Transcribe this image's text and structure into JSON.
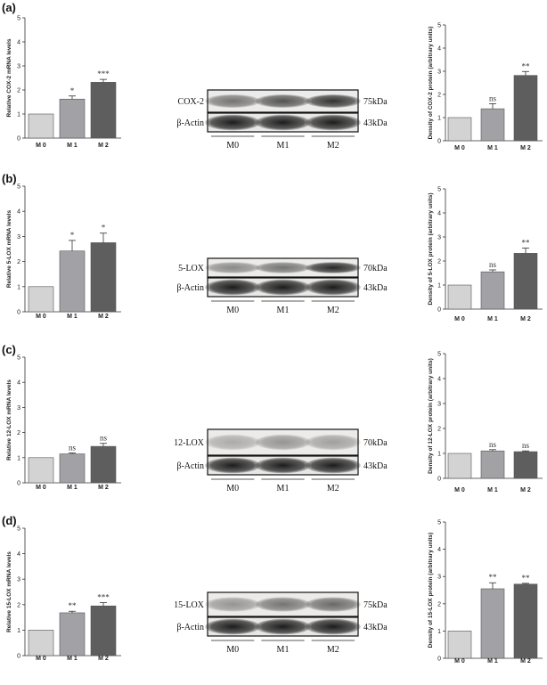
{
  "panels": [
    {
      "label": "(a)",
      "mrna": {
        "ylabel": "Relative COX-2 mRNA levels",
        "categories": [
          "M 0",
          "M 1",
          "M 2"
        ],
        "values": [
          1.0,
          1.62,
          2.32
        ],
        "errors": [
          0,
          0.13,
          0.12
        ],
        "sig": [
          "",
          "*",
          "***"
        ],
        "ylim": [
          0,
          5
        ]
      },
      "blot": {
        "target": "COX-2",
        "target_kda": "75kDa",
        "actin": "β-Actin",
        "actin_kda": "43kDa",
        "groups": [
          "M0",
          "M1",
          "M2"
        ]
      },
      "protein": {
        "ylabel": "Density of COX-2 protein (arbitrary units)",
        "categories": [
          "M 0",
          "M 1",
          "M 2"
        ],
        "values": [
          1.0,
          1.38,
          2.82
        ],
        "errors": [
          0,
          0.22,
          0.17
        ],
        "sig": [
          "",
          "ns",
          "**"
        ],
        "ylim": [
          0,
          5
        ]
      }
    },
    {
      "label": "(b)",
      "mrna": {
        "ylabel": "Relative 5-LOX mRNA levels",
        "categories": [
          "M 0",
          "M 1",
          "M 2"
        ],
        "values": [
          1.0,
          2.42,
          2.75
        ],
        "errors": [
          0,
          0.42,
          0.38
        ],
        "sig": [
          "",
          "*",
          "*"
        ],
        "ylim": [
          0,
          5
        ]
      },
      "blot": {
        "target": "5-LOX",
        "target_kda": "70kDa",
        "actin": "β-Actin",
        "actin_kda": "43kDa",
        "groups": [
          "M0",
          "M1",
          "M2"
        ]
      },
      "protein": {
        "ylabel": "Density of 5-LOX protein (arbitrary units)",
        "categories": [
          "M 0",
          "M 1",
          "M 2"
        ],
        "values": [
          1.0,
          1.55,
          2.32
        ],
        "errors": [
          0,
          0.08,
          0.22
        ],
        "sig": [
          "",
          "ns",
          "**"
        ],
        "ylim": [
          0,
          5
        ]
      }
    },
    {
      "label": "(c)",
      "mrna": {
        "ylabel": "Relative 12-LOX mRNA levels",
        "categories": [
          "M 0",
          "M 1",
          "M 2"
        ],
        "values": [
          1.0,
          1.15,
          1.45
        ],
        "errors": [
          0,
          0.04,
          0.12
        ],
        "sig": [
          "",
          "ns",
          "ns"
        ],
        "ylim": [
          0,
          5
        ]
      },
      "blot": {
        "target": "12-LOX",
        "target_kda": "70kDa",
        "actin": "β-Actin",
        "actin_kda": "43kDa",
        "groups": [
          "M0",
          "M1",
          "M2"
        ]
      },
      "protein": {
        "ylabel": "Density of 12-LOX protein (arbitrary units)",
        "categories": [
          "M 0",
          "M 1",
          "M 2"
        ],
        "values": [
          1.0,
          1.1,
          1.07
        ],
        "errors": [
          0,
          0.05,
          0.03
        ],
        "sig": [
          "",
          "ns",
          "ns"
        ],
        "ylim": [
          0,
          5
        ]
      }
    },
    {
      "label": "(d)",
      "mrna": {
        "ylabel": "Relative 15-LOX mRNA levels",
        "categories": [
          "M 0",
          "M 1",
          "M 2"
        ],
        "values": [
          1.0,
          1.68,
          1.95
        ],
        "errors": [
          0,
          0.06,
          0.13
        ],
        "sig": [
          "",
          "**",
          "***"
        ],
        "ylim": [
          0,
          5
        ]
      },
      "blot": {
        "target": "15-LOX",
        "target_kda": "75kDa",
        "actin": "β-Actin",
        "actin_kda": "43kDa",
        "groups": [
          "M0",
          "M1",
          "M2"
        ]
      },
      "protein": {
        "ylabel": "Density of 15-LOX protein (arbitrary units)",
        "categories": [
          "M 0",
          "M 1",
          "M 2"
        ],
        "values": [
          1.0,
          2.55,
          2.72
        ],
        "errors": [
          0,
          0.22,
          0.03
        ],
        "sig": [
          "",
          "**",
          "**"
        ],
        "ylim": [
          0,
          5
        ]
      }
    }
  ],
  "chart_data": [
    {
      "type": "bar",
      "title": "",
      "xlabel": "",
      "ylabel": "Relative COX-2 mRNA levels",
      "categories": [
        "M 0",
        "M 1",
        "M 2"
      ],
      "values": [
        1.0,
        1.62,
        2.32
      ],
      "ylim": [
        0,
        5
      ]
    },
    {
      "type": "bar",
      "title": "",
      "xlabel": "",
      "ylabel": "Density of COX-2 protein (arbitrary units)",
      "categories": [
        "M 0",
        "M 1",
        "M 2"
      ],
      "values": [
        1.0,
        1.38,
        2.82
      ],
      "ylim": [
        0,
        5
      ]
    },
    {
      "type": "bar",
      "title": "",
      "xlabel": "",
      "ylabel": "Relative 5-LOX mRNA levels",
      "categories": [
        "M 0",
        "M 1",
        "M 2"
      ],
      "values": [
        1.0,
        2.42,
        2.75
      ],
      "ylim": [
        0,
        5
      ]
    },
    {
      "type": "bar",
      "title": "",
      "xlabel": "",
      "ylabel": "Density of 5-LOX protein (arbitrary units)",
      "categories": [
        "M 0",
        "M 1",
        "M 2"
      ],
      "values": [
        1.0,
        1.55,
        2.32
      ],
      "ylim": [
        0,
        5
      ]
    },
    {
      "type": "bar",
      "title": "",
      "xlabel": "",
      "ylabel": "Relative 12-LOX mRNA levels",
      "categories": [
        "M 0",
        "M 1",
        "M 2"
      ],
      "values": [
        1.0,
        1.15,
        1.45
      ],
      "ylim": [
        0,
        5
      ]
    },
    {
      "type": "bar",
      "title": "",
      "xlabel": "",
      "ylabel": "Density of 12-LOX protein (arbitrary units)",
      "categories": [
        "M 0",
        "M 1",
        "M 2"
      ],
      "values": [
        1.0,
        1.1,
        1.07
      ],
      "ylim": [
        0,
        5
      ]
    },
    {
      "type": "bar",
      "title": "",
      "xlabel": "",
      "ylabel": "Relative 15-LOX mRNA levels",
      "categories": [
        "M 0",
        "M 1",
        "M 2"
      ],
      "values": [
        1.0,
        1.68,
        1.95
      ],
      "ylim": [
        0,
        5
      ]
    },
    {
      "type": "bar",
      "title": "",
      "xlabel": "",
      "ylabel": "Density of 15-LOX protein (arbitrary units)",
      "categories": [
        "M 0",
        "M 1",
        "M 2"
      ],
      "values": [
        1.0,
        2.55,
        2.72
      ],
      "ylim": [
        0,
        5
      ]
    }
  ],
  "colors": {
    "bars": [
      "#d3d3d3",
      "#a2a2a6",
      "#5e5e5e"
    ],
    "bar_outline": "#555555"
  }
}
